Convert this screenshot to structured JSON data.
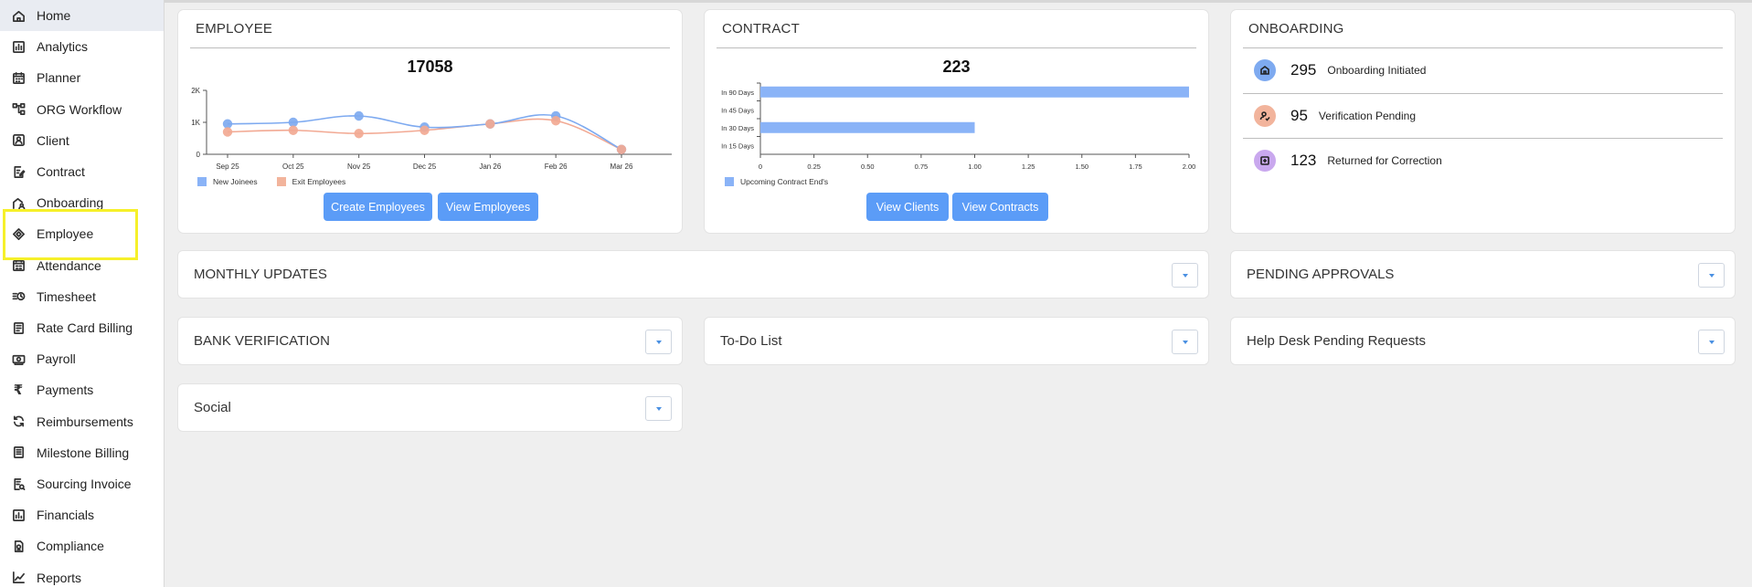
{
  "sidebar": {
    "items": [
      {
        "label": "Home",
        "icon": "home-icon"
      },
      {
        "label": "Analytics",
        "icon": "analytics-icon"
      },
      {
        "label": "Planner",
        "icon": "calendar-icon"
      },
      {
        "label": "ORG Workflow",
        "icon": "workflow-icon"
      },
      {
        "label": "Client",
        "icon": "client-icon"
      },
      {
        "label": "Contract",
        "icon": "contract-icon"
      },
      {
        "label": "Onboarding",
        "icon": "onboarding-icon"
      },
      {
        "label": "Employee",
        "icon": "employee-icon"
      },
      {
        "label": "Attendance",
        "icon": "attendance-icon"
      },
      {
        "label": "Timesheet",
        "icon": "timesheet-icon"
      },
      {
        "label": "Rate Card Billing",
        "icon": "billing-icon"
      },
      {
        "label": "Payroll",
        "icon": "payroll-icon"
      },
      {
        "label": "Payments",
        "icon": "rupee-icon"
      },
      {
        "label": "Reimbursements",
        "icon": "reimbursement-icon"
      },
      {
        "label": "Milestone Billing",
        "icon": "milestone-icon"
      },
      {
        "label": "Sourcing Invoice",
        "icon": "invoice-icon"
      },
      {
        "label": "Financials",
        "icon": "financials-icon"
      },
      {
        "label": "Compliance",
        "icon": "compliance-icon"
      },
      {
        "label": "Reports",
        "icon": "reports-icon"
      }
    ]
  },
  "employee_card": {
    "title": "EMPLOYEE",
    "total": "17058",
    "create_label": "Create Employees",
    "view_label": "View Employees",
    "legend": [
      "New Joinees",
      "Exit Employees"
    ],
    "y_ticks": [
      "2K",
      "1K",
      "0"
    ]
  },
  "contract_card": {
    "title": "CONTRACT",
    "total": "223",
    "clients_label": "View Clients",
    "contracts_label": "View Contracts",
    "legend": "Upcoming Contract End's"
  },
  "onboarding_card": {
    "title": "ONBOARDING",
    "rows": [
      {
        "count": "295",
        "label": "Onboarding Initiated",
        "color": "#7eaaf0"
      },
      {
        "count": "95",
        "label": "Verification Pending",
        "color": "#f2b49c"
      },
      {
        "count": "123",
        "label": "Returned for Correction",
        "color": "#c9a8ee"
      }
    ]
  },
  "panels": {
    "monthly_updates": "MONTHLY UPDATES",
    "pending_approvals": "PENDING APPROVALS",
    "bank_verification": "BANK VERIFICATION",
    "todo": "To-Do List",
    "helpdesk": "Help Desk Pending Requests",
    "social": "Social"
  },
  "chart_data": [
    {
      "type": "line",
      "title": "",
      "categories": [
        "Sep 25",
        "Oct 25",
        "Nov 25",
        "Dec 25",
        "Jan 26",
        "Feb 26",
        "Mar 26"
      ],
      "series": [
        {
          "name": "New Joinees",
          "values": [
            950,
            1000,
            1200,
            850,
            950,
            1200,
            150
          ],
          "color": "#7eaaf0"
        },
        {
          "name": "Exit Employees",
          "values": [
            700,
            750,
            650,
            750,
            950,
            1050,
            150
          ],
          "color": "#f2a993"
        }
      ],
      "ylim": [
        0,
        2000
      ],
      "y_tick_values": [
        0,
        1000,
        2000
      ]
    },
    {
      "type": "bar",
      "orientation": "horizontal",
      "title": "",
      "categories": [
        "In 90 Days",
        "In 45 Days",
        "In 30 Days",
        "In 15 Days"
      ],
      "series": [
        {
          "name": "Upcoming Contract End's",
          "values": [
            2,
            0,
            1,
            0
          ],
          "color": "#8ab3f7"
        }
      ],
      "xlim": [
        0,
        2
      ],
      "x_ticks": [
        "0",
        "0.25",
        "0.50",
        "0.75",
        "1.00",
        "1.25",
        "1.50",
        "1.75",
        "2.00"
      ]
    }
  ]
}
